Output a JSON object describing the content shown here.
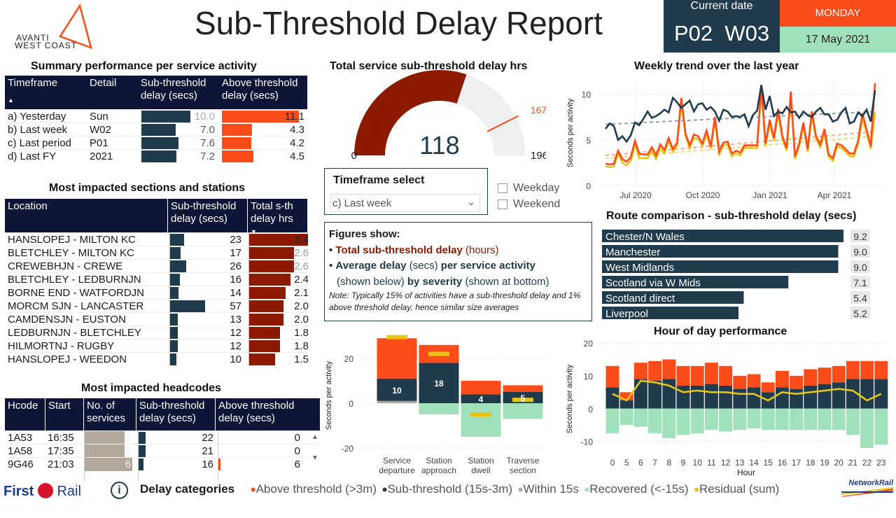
{
  "brand": {
    "logo_line1": "AVANTI",
    "logo_line2": "WEST COAST",
    "first_rail": "First",
    "first_rail_b": "Rail",
    "network_rail": "NetworkRail"
  },
  "header": {
    "title": "Sub-Threshold Delay Report",
    "current_date_label": "Current date",
    "period_week": "P02  W03",
    "day": "MONDAY",
    "date": "17 May 2021"
  },
  "summary": {
    "title": "Summary performance per service activity",
    "headers": [
      "Timeframe",
      "Detail",
      "Sub-threshold delay (secs)",
      "Above threshold delay (secs)"
    ],
    "rows": [
      {
        "timeframe": "a) Yesterday",
        "detail": "Sun",
        "sub": 10.0,
        "sub_txt": "10.0",
        "above": 11.1,
        "above_txt": "11.1"
      },
      {
        "timeframe": "b) Last week",
        "detail": "W02",
        "sub": 7.0,
        "sub_txt": "7.0",
        "above": 4.3,
        "above_txt": "4.3"
      },
      {
        "timeframe": "c) Last period",
        "detail": "P01",
        "sub": 7.6,
        "sub_txt": "7.6",
        "above": 4.2,
        "above_txt": "4.2"
      },
      {
        "timeframe": "d) Last FY",
        "detail": "2021",
        "sub": 7.2,
        "sub_txt": "7.2",
        "above": 4.5,
        "above_txt": "4.5"
      }
    ]
  },
  "sections": {
    "title": "Most impacted sections and stations",
    "headers": [
      "Location",
      "Sub-threshold delay (secs)",
      "Total s-th delay hrs"
    ],
    "rows": [
      {
        "loc": "HANSLOPEJ - MILTON KC",
        "sub": 23,
        "hrs": 3.4,
        "hrs_txt": "3.4"
      },
      {
        "loc": "BLETCHLEY - MILTON KC",
        "sub": 17,
        "hrs": 2.6,
        "hrs_txt": "2.6"
      },
      {
        "loc": "CREWEBHJN - CREWE",
        "sub": 26,
        "hrs": 2.6,
        "hrs_txt": "2.6"
      },
      {
        "loc": "BLETCHLEY - LEDBURNJN",
        "sub": 16,
        "hrs": 2.4,
        "hrs_txt": "2.4"
      },
      {
        "loc": "BORNE END - WATFORDJN",
        "sub": 14,
        "hrs": 2.1,
        "hrs_txt": "2.1"
      },
      {
        "loc": "MORCM SJN - LANCASTER",
        "sub": 57,
        "hrs": 2.0,
        "hrs_txt": "2.0"
      },
      {
        "loc": "CAMDENSJN - EUSTON",
        "sub": 13,
        "hrs": 2.0,
        "hrs_txt": "2.0"
      },
      {
        "loc": "LEDBURNJN - BLETCHLEY",
        "sub": 12,
        "hrs": 1.8,
        "hrs_txt": "1.8"
      },
      {
        "loc": "HILMORTNJ - RUGBY",
        "sub": 12,
        "hrs": 1.8,
        "hrs_txt": "1.8"
      },
      {
        "loc": "HANSLOPEJ - WEEDON",
        "sub": 10,
        "hrs": 1.5,
        "hrs_txt": "1.5"
      }
    ]
  },
  "headcodes": {
    "title": "Most impacted headcodes",
    "headers": [
      "Hcode",
      "Start",
      "No. of services",
      "Sub-threshold delay (secs)",
      "Above threshold delay (secs)"
    ],
    "rows": [
      {
        "hcode": "1A53",
        "start": "16:35",
        "services": 5,
        "sub": 22,
        "above": 0
      },
      {
        "hcode": "1A58",
        "start": "17:35",
        "services": 5,
        "sub": 21,
        "above": 0
      },
      {
        "hcode": "9G46",
        "start": "21:03",
        "services": 6,
        "sub": 16,
        "above": 6
      }
    ]
  },
  "gauge": {
    "title": "Total service sub-threshold delay hrs",
    "value": 118,
    "min": 0,
    "max": 196,
    "target": 167
  },
  "timeframe_select": {
    "title": "Timeframe select",
    "value": "c) Last week",
    "weekday": "Weekday",
    "weekend": "Weekend"
  },
  "figures_show": {
    "title": "Figures show:",
    "line1_b": "Total sub-threshold delay",
    "line1_r": "(hours)",
    "line2_b": "Average delay",
    "line2_m": "(secs)",
    "line2_b2": "per service activity",
    "line3_r": "(shown below)",
    "line3_b": "by severity",
    "line3_r2": "(shown at bottom)",
    "note": "Note: Typically 15% of activities have a sub-threshold delay and 1% above threshold delay, hence similar size averages"
  },
  "colors": {
    "above": "#fb4c1a",
    "sub": "#203c4c",
    "within": "#b1a79b",
    "recovered": "#a0e1bc",
    "residual": "#e8c416",
    "hrs": "#8b1a00"
  },
  "chart_data": [
    {
      "type": "line",
      "title": "Weekly trend over the last year",
      "ylabel": "Seconds per activity",
      "xlabels": [
        "Jul 2020",
        "Oct 2020",
        "Jan 2021",
        "Apr 2021"
      ],
      "yticks": [
        0,
        5,
        10
      ],
      "ylim": [
        0,
        11.5
      ],
      "series": [
        {
          "color": "#203c4c",
          "values": [
            6.2,
            6.8,
            6.5,
            5.0,
            5.4,
            4.8,
            5.5,
            6.9,
            6.6,
            7.3,
            8.1,
            7.4,
            7.6,
            7.9,
            8.3,
            8.0,
            9.6,
            9.1,
            8.5,
            8.9,
            9.3,
            8.1,
            8.9,
            9.0,
            8.3,
            8.6,
            8.1,
            7.1,
            8.3,
            8.1,
            7.5,
            7.6,
            7.5,
            7.8,
            6.5,
            7.7,
            8.2,
            11.0,
            8.3,
            9.8,
            7.6,
            8.1,
            7.9,
            8.6,
            8.0,
            8.1,
            7.4,
            8.1,
            7.7,
            7.5,
            8.1,
            8.5,
            7.8,
            7.8,
            7.0,
            7.2,
            8.0,
            8.5,
            6.8,
            7.0,
            8.0,
            7.6,
            8.3,
            7.0,
            10.4
          ]
        },
        {
          "color": "#fb4c1a",
          "values": [
            2.4,
            2.3,
            2.4,
            3.8,
            2.9,
            2.6,
            3.1,
            4.9,
            3.5,
            3.4,
            3.4,
            4.2,
            3.3,
            4.5,
            3.9,
            5.2,
            4.0,
            4.7,
            9.6,
            5.7,
            4.4,
            5.6,
            5.4,
            4.6,
            6.0,
            4.3,
            7.5,
            3.7,
            4.7,
            4.8,
            3.5,
            3.8,
            3.6,
            4.4,
            4.4,
            4.4,
            4.4,
            11.0,
            4.6,
            7.2,
            5.2,
            8.4,
            5.4,
            4.1,
            10.3,
            3.2,
            4.6,
            6.9,
            4.0,
            8.1,
            5.4,
            4.5,
            6.2,
            3.4,
            3.0,
            4.6,
            4.4,
            4.0,
            3.5,
            3.5,
            4.9,
            7.9,
            6.1,
            4.3,
            11.2
          ]
        },
        {
          "color": "#e8c416",
          "values": [
            2.1,
            2.0,
            2.1,
            3.5,
            2.5,
            2.2,
            2.7,
            4.5,
            3.0,
            3.0,
            3.0,
            3.8,
            2.9,
            4.1,
            3.5,
            4.9,
            3.7,
            4.4,
            9.2,
            5.4,
            4.1,
            5.2,
            5.1,
            4.3,
            5.6,
            4.0,
            7.1,
            3.4,
            4.4,
            4.5,
            3.2,
            3.5,
            3.3,
            4.1,
            4.1,
            4.1,
            4.1,
            10.5,
            4.3,
            6.8,
            4.9,
            7.9,
            5.1,
            3.8,
            9.8,
            2.9,
            4.3,
            6.5,
            3.7,
            7.6,
            5.1,
            4.2,
            5.7,
            3.1,
            2.7,
            4.3,
            4.1,
            3.7,
            3.2,
            3.2,
            4.6,
            7.4,
            5.8,
            4.0,
            8.0
          ]
        }
      ],
      "trends": [
        {
          "color": "#8aa0ab",
          "from": 6.7,
          "to": 8.1
        },
        {
          "color": "#f6a98f",
          "from": 3.3,
          "to": 5.9
        },
        {
          "color": "#f0d77a",
          "from": 3.0,
          "to": 5.4
        }
      ]
    },
    {
      "type": "bar",
      "title": "Route comparison - sub-threshold delay (secs)",
      "categories": [
        "Chester/N Wales",
        "Manchester",
        "West Midlands",
        "Scotland via W Mids",
        "Scotland direct",
        "Liverpool"
      ],
      "values": [
        9.2,
        9.0,
        9.0,
        7.1,
        5.4,
        5.2
      ],
      "labels": [
        "9.2",
        "9.0",
        "9.0",
        "7.1",
        "5.4",
        "5.2"
      ]
    },
    {
      "type": "bar",
      "title": "",
      "ylabel": "Seconds per activity",
      "categories": [
        "Service departure",
        "Station approach",
        "Station dwell",
        "Traverse section"
      ],
      "cat_lines": [
        [
          "Service",
          "departure"
        ],
        [
          "Station",
          "approach"
        ],
        [
          "Station",
          "dwell"
        ],
        [
          "Traverse",
          "section"
        ]
      ],
      "yticks": [
        -20,
        0,
        20
      ],
      "ylim": [
        -20,
        30
      ],
      "within": [
        1,
        0,
        0,
        0
      ],
      "sub": [
        10,
        18,
        4,
        5
      ],
      "above": [
        18,
        8,
        6,
        3
      ],
      "recovered": [
        0,
        -5,
        -15,
        -7
      ],
      "residual": [
        29.5,
        22,
        -5,
        1.5
      ],
      "sub_labels": [
        "10",
        "18",
        "4",
        "5"
      ]
    },
    {
      "type": "bar",
      "title": "Hour of day performance",
      "xlabel": "Hour",
      "ylabel": "Seconds per activity",
      "categories": [
        "0",
        "5",
        "6",
        "7",
        "8",
        "9",
        "10",
        "11",
        "12",
        "13",
        "14",
        "15",
        "16",
        "17",
        "18",
        "19",
        "20",
        "21",
        "22",
        "23"
      ],
      "yticks": [
        -10,
        0,
        10,
        20
      ],
      "ylim": [
        -12,
        20
      ],
      "sub": [
        6.5,
        2.5,
        9,
        8.5,
        9,
        7,
        7,
        7.5,
        7,
        6,
        6.5,
        5,
        6.5,
        6,
        7,
        7.5,
        8,
        9,
        9,
        9
      ],
      "above": [
        6.5,
        2.5,
        5,
        6,
        6,
        6,
        6,
        6.5,
        6,
        4,
        4,
        3,
        5,
        4,
        5,
        5,
        5,
        5.5,
        5.5,
        5.5
      ],
      "recovered": [
        -7.5,
        -5,
        -5.5,
        -7.5,
        -9,
        -8,
        -7.5,
        -6.5,
        -7,
        -6.5,
        -6,
        -6.5,
        -6.5,
        -6.5,
        -6.5,
        -6.5,
        -6.5,
        -8,
        -12,
        -11
      ],
      "residual": [
        4.5,
        2.5,
        8.5,
        8,
        7,
        5,
        5.5,
        5,
        5,
        4.5,
        4.5,
        2.5,
        5,
        4.5,
        5,
        5.5,
        6,
        5.5,
        2.5,
        4.5
      ]
    }
  ],
  "legend": {
    "title": "Delay categories",
    "items": [
      "Above threshold (>3m)",
      "Sub-threshold (15s-3m)",
      "Within 15s",
      "Recovered (<-15s)",
      "Residual (sum)"
    ]
  },
  "info_icon": "info-icon"
}
